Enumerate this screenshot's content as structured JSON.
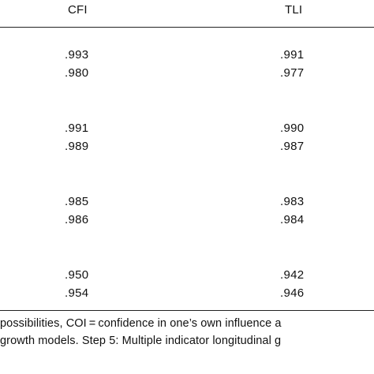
{
  "columns": {
    "cfi": "CFI",
    "tli": "TLI"
  },
  "groups": [
    {
      "rows": [
        {
          "cfi": ".993",
          "tli": ".991"
        },
        {
          "cfi": ".980",
          "tli": ".977"
        }
      ]
    },
    {
      "rows": [
        {
          "cfi": ".991",
          "tli": ".990"
        },
        {
          "cfi": ".989",
          "tli": ".987"
        }
      ]
    },
    {
      "rows": [
        {
          "cfi": ".985",
          "tli": ".983"
        },
        {
          "cfi": ".986",
          "tli": ".984"
        }
      ]
    },
    {
      "rows": [
        {
          "cfi": ".950",
          "tli": ".942"
        },
        {
          "cfi": ".954",
          "tli": ".946"
        }
      ]
    }
  ],
  "footnote": {
    "line1": "possibilities, COI = confidence in one’s own influence a",
    "line2": " growth models. Step 5: Multiple indicator longitudinal g"
  }
}
